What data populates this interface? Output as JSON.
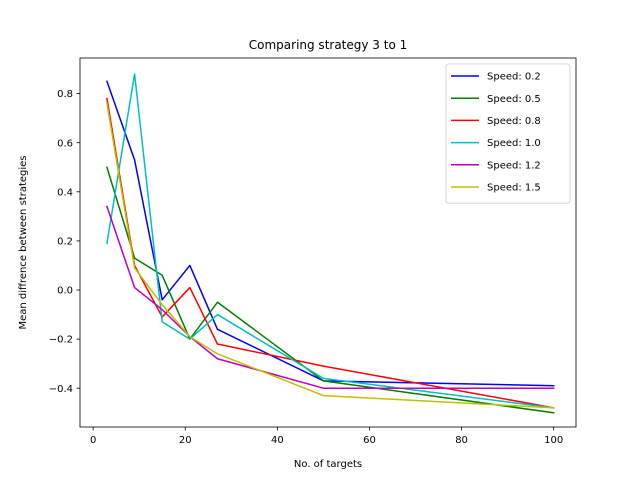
{
  "chart_data": {
    "type": "line",
    "title": "Comparing strategy 3 to 1",
    "xlabel": "No. of targets",
    "ylabel": "Mean diffrence between strategies",
    "xlim": [
      -2.85,
      104.85
    ],
    "ylim": [
      -0.558,
      0.945
    ],
    "xticks": [
      0,
      20,
      40,
      60,
      80,
      100
    ],
    "yticks": [
      -0.4,
      -0.2,
      0.0,
      0.2,
      0.4,
      0.6,
      0.8
    ],
    "ytick_labels": [
      "−0.4",
      "−0.2",
      "0.0",
      "0.2",
      "0.4",
      "0.6",
      "0.8"
    ],
    "grid": false,
    "legend_position": "top-right",
    "x": [
      3,
      9,
      15,
      21,
      27,
      50,
      100
    ],
    "series": [
      {
        "name": "Speed: 0.2",
        "color": "#0000ff",
        "values": [
          0.85,
          0.53,
          -0.04,
          0.1,
          -0.16,
          -0.37,
          -0.39
        ]
      },
      {
        "name": "Speed: 0.5",
        "color": "#008000",
        "values": [
          0.5,
          0.13,
          0.06,
          -0.2,
          -0.05,
          -0.37,
          -0.5
        ]
      },
      {
        "name": "Speed: 0.8",
        "color": "#ff0000",
        "values": [
          0.78,
          0.1,
          -0.11,
          0.01,
          -0.22,
          -0.31,
          -0.48
        ]
      },
      {
        "name": "Speed: 1.0",
        "color": "#00bfbf",
        "values": [
          0.19,
          0.88,
          -0.13,
          -0.2,
          -0.1,
          -0.36,
          -0.48
        ]
      },
      {
        "name": "Speed: 1.2",
        "color": "#bf00bf",
        "values": [
          0.34,
          0.01,
          -0.08,
          -0.19,
          -0.28,
          -0.4,
          -0.4
        ]
      },
      {
        "name": "Speed: 1.5",
        "color": "#bfbf00",
        "values": [
          0.76,
          0.09,
          -0.06,
          -0.19,
          -0.26,
          -0.43,
          -0.48
        ]
      }
    ]
  }
}
